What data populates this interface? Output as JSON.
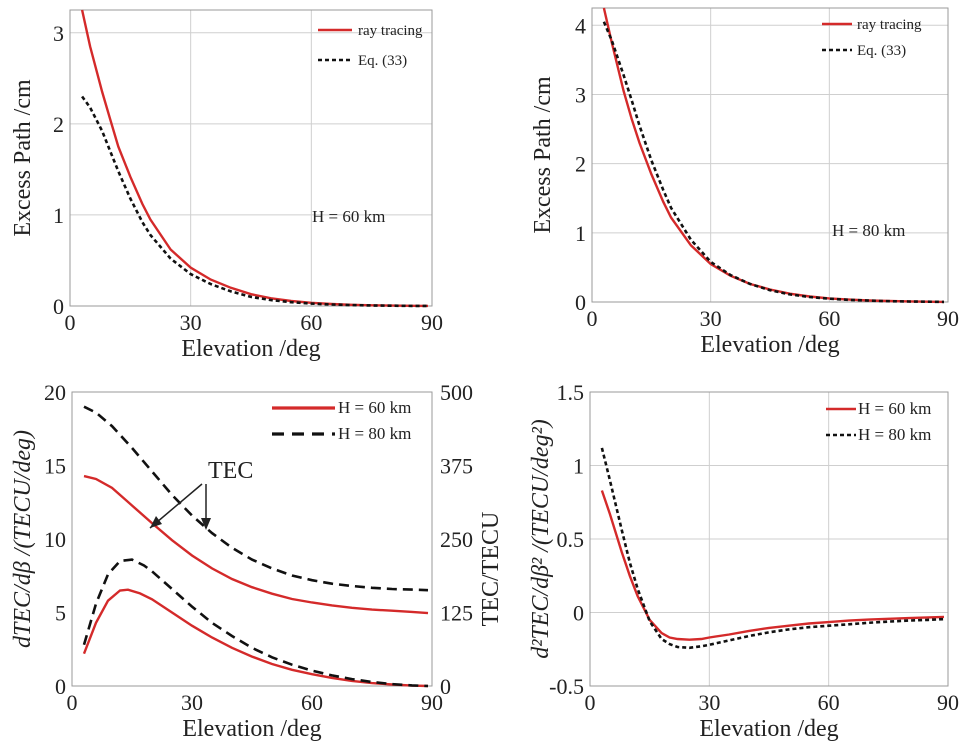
{
  "chart_data": [
    {
      "type": "line",
      "xlabel": "Elevation /deg",
      "ylabel": "Excess Path /cm",
      "xticks": [
        "0",
        "30",
        "60",
        "90"
      ],
      "yticks": [
        "0",
        "1",
        "2",
        "3"
      ],
      "xlim": [
        0,
        90
      ],
      "ylim": [
        0,
        3.25
      ],
      "grid": true,
      "legend_position": "top-right",
      "annotation": "H = 60 km",
      "series": [
        {
          "name": "ray tracing",
          "color": "#d42a2a",
          "style": "solid",
          "x": [
            3,
            5,
            8,
            10,
            12,
            15,
            18,
            20,
            25,
            30,
            35,
            40,
            45,
            50,
            55,
            60,
            65,
            70,
            75,
            80,
            85,
            89
          ],
          "y": [
            3.25,
            2.85,
            2.35,
            2.05,
            1.75,
            1.42,
            1.12,
            0.95,
            0.62,
            0.42,
            0.29,
            0.2,
            0.13,
            0.085,
            0.055,
            0.035,
            0.022,
            0.013,
            0.008,
            0.004,
            0.002,
            0.001
          ]
        },
        {
          "name": "Eq. (33)",
          "color": "#111111",
          "style": "dotted",
          "x": [
            3,
            5,
            8,
            10,
            12,
            15,
            18,
            20,
            25,
            30,
            35,
            40,
            45,
            50,
            55,
            60,
            65,
            70,
            75,
            80,
            85,
            89
          ],
          "y": [
            2.3,
            2.18,
            1.92,
            1.7,
            1.48,
            1.18,
            0.92,
            0.78,
            0.52,
            0.35,
            0.24,
            0.16,
            0.1,
            0.065,
            0.042,
            0.026,
            0.016,
            0.01,
            0.006,
            0.003,
            0.0015,
            0.001
          ]
        }
      ]
    },
    {
      "type": "line",
      "xlabel": "Elevation /deg",
      "ylabel": "Excess Path /cm",
      "xticks": [
        "0",
        "30",
        "60",
        "90"
      ],
      "yticks": [
        "0",
        "1",
        "2",
        "3",
        "4"
      ],
      "xlim": [
        0,
        90
      ],
      "ylim": [
        0,
        4.25
      ],
      "grid": true,
      "legend_position": "top-right",
      "annotation": "H = 80 km",
      "series": [
        {
          "name": "ray tracing",
          "color": "#d42a2a",
          "style": "solid",
          "x": [
            3,
            5,
            8,
            10,
            12,
            15,
            18,
            20,
            25,
            30,
            35,
            40,
            45,
            50,
            55,
            60,
            65,
            70,
            75,
            80,
            85,
            89
          ],
          "y": [
            4.3,
            3.75,
            3.05,
            2.65,
            2.3,
            1.85,
            1.45,
            1.22,
            0.82,
            0.55,
            0.38,
            0.26,
            0.18,
            0.12,
            0.08,
            0.052,
            0.034,
            0.022,
            0.014,
            0.008,
            0.004,
            0.002
          ]
        },
        {
          "name": "Eq. (33)",
          "color": "#111111",
          "style": "dotted",
          "x": [
            3,
            5,
            8,
            10,
            12,
            15,
            18,
            20,
            25,
            30,
            35,
            40,
            45,
            50,
            55,
            60,
            65,
            70,
            75,
            80,
            85,
            89
          ],
          "y": [
            4.05,
            3.78,
            3.28,
            2.92,
            2.55,
            2.05,
            1.62,
            1.36,
            0.9,
            0.58,
            0.39,
            0.26,
            0.17,
            0.11,
            0.073,
            0.048,
            0.031,
            0.02,
            0.012,
            0.007,
            0.004,
            0.002
          ]
        }
      ]
    },
    {
      "type": "line",
      "xlabel": "Elevation /deg",
      "ylabel": "dTEC/dβ /(TECU/deg)",
      "ylabel_right": "TEC/TECU",
      "xticks": [
        "0",
        "30",
        "60",
        "90"
      ],
      "yticks": [
        "0",
        "5",
        "10",
        "15",
        "20"
      ],
      "yticks_right": [
        "0",
        "125",
        "250",
        "375",
        "500"
      ],
      "xlim": [
        0,
        90
      ],
      "ylim": [
        0,
        20
      ],
      "ylim_right": [
        0,
        500
      ],
      "grid": false,
      "legend_position": "top-right",
      "annotation": "TEC",
      "series": [
        {
          "name": "H = 60 km",
          "color": "#d42a2a",
          "style": "solid",
          "x": [
            3,
            6,
            9,
            12,
            14,
            17,
            20,
            25,
            30,
            35,
            40,
            45,
            50,
            55,
            60,
            65,
            70,
            75,
            80,
            85,
            89
          ],
          "y": [
            2.2,
            4.3,
            5.8,
            6.5,
            6.55,
            6.3,
            5.9,
            5.0,
            4.1,
            3.3,
            2.6,
            2.0,
            1.5,
            1.1,
            0.8,
            0.55,
            0.35,
            0.2,
            0.1,
            0.03,
            0.0
          ]
        },
        {
          "name": "H = 80 km",
          "color": "#111111",
          "style": "dashed",
          "x": [
            3,
            6,
            9,
            12,
            15,
            18,
            20,
            25,
            30,
            35,
            40,
            45,
            50,
            55,
            60,
            65,
            70,
            75,
            80,
            85,
            89
          ],
          "y": [
            2.8,
            5.6,
            7.6,
            8.5,
            8.6,
            8.2,
            7.8,
            6.6,
            5.4,
            4.3,
            3.4,
            2.6,
            1.95,
            1.45,
            1.05,
            0.72,
            0.47,
            0.27,
            0.13,
            0.04,
            0.0
          ]
        },
        {
          "name": "TEC (H = 60 km)",
          "color": "#d42a2a",
          "style": "solid",
          "axis": "right",
          "x": [
            3,
            6,
            10,
            15,
            20,
            25,
            30,
            35,
            40,
            45,
            50,
            55,
            60,
            65,
            70,
            75,
            80,
            85,
            89
          ],
          "y": [
            357,
            352,
            337,
            307,
            277,
            248,
            222,
            200,
            182,
            168,
            157,
            148,
            142,
            137,
            133,
            130,
            128,
            126,
            124
          ]
        },
        {
          "name": "TEC (H = 80 km)",
          "color": "#111111",
          "style": "dashed",
          "axis": "right",
          "x": [
            3,
            6,
            10,
            15,
            20,
            25,
            30,
            35,
            40,
            45,
            50,
            55,
            60,
            65,
            70,
            75,
            80,
            85,
            89
          ],
          "y": [
            475,
            465,
            442,
            405,
            365,
            325,
            290,
            260,
            235,
            215,
            200,
            188,
            180,
            174,
            170,
            167,
            165,
            164,
            163
          ]
        }
      ]
    },
    {
      "type": "line",
      "xlabel": "Elevation /deg",
      "ylabel": "d²TEC/dβ² /(TECU/deg²)",
      "xticks": [
        "0",
        "30",
        "60",
        "90"
      ],
      "yticks": [
        "-0.5",
        "0",
        "0.5",
        "1",
        "1.5"
      ],
      "xlim": [
        0,
        90
      ],
      "ylim": [
        -0.5,
        1.5
      ],
      "grid": true,
      "legend_position": "top-right",
      "series": [
        {
          "name": "H = 60 km",
          "color": "#d42a2a",
          "style": "solid",
          "x": [
            3,
            5,
            8,
            10,
            12,
            15,
            18,
            20,
            22,
            25,
            28,
            30,
            35,
            40,
            45,
            50,
            55,
            60,
            65,
            70,
            75,
            80,
            85,
            89
          ],
          "y": [
            0.83,
            0.67,
            0.41,
            0.25,
            0.11,
            -0.05,
            -0.14,
            -0.17,
            -0.18,
            -0.185,
            -0.18,
            -0.17,
            -0.15,
            -0.125,
            -0.105,
            -0.09,
            -0.075,
            -0.065,
            -0.055,
            -0.048,
            -0.043,
            -0.038,
            -0.033,
            -0.03
          ]
        },
        {
          "name": "H = 80 km",
          "color": "#111111",
          "style": "dotted",
          "x": [
            3,
            5,
            8,
            10,
            12,
            15,
            18,
            20,
            22,
            25,
            28,
            30,
            35,
            40,
            45,
            50,
            55,
            60,
            65,
            70,
            75,
            80,
            85,
            89
          ],
          "y": [
            1.12,
            0.9,
            0.56,
            0.34,
            0.16,
            -0.06,
            -0.18,
            -0.215,
            -0.235,
            -0.24,
            -0.23,
            -0.22,
            -0.19,
            -0.16,
            -0.135,
            -0.115,
            -0.1,
            -0.09,
            -0.08,
            -0.07,
            -0.062,
            -0.055,
            -0.05,
            -0.045
          ]
        }
      ]
    }
  ]
}
